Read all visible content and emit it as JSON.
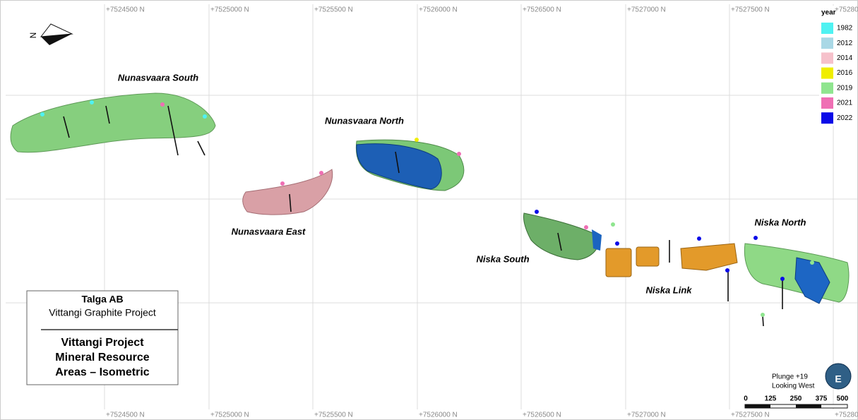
{
  "grid_labels": {
    "top": [
      "+7524500 N",
      "+7525000 N",
      "+7525500 N",
      "+7526000 N",
      "+7526500 N",
      "+7527000 N",
      "+7527500 N",
      "+75280"
    ],
    "bottom": [
      "+7524500 N",
      "+7525000 N",
      "+7525500 N",
      "+7526000 N",
      "+7526500 N",
      "+7527000 N",
      "+7527500 N",
      "+75280"
    ]
  },
  "legend": {
    "title": "year",
    "entries": [
      {
        "label": "1982",
        "color": "#4ff2f2"
      },
      {
        "label": "2012",
        "color": "#a9d8e6"
      },
      {
        "label": "2014",
        "color": "#f6c1cb"
      },
      {
        "label": "2016",
        "color": "#f0ee00"
      },
      {
        "label": "2019",
        "color": "#8fe58f"
      },
      {
        "label": "2021",
        "color": "#ef6fb4"
      },
      {
        "label": "2022",
        "color": "#0a0ae8"
      }
    ]
  },
  "areas": [
    "Nunasvaara South",
    "Nunasvaara North",
    "Nunasvaara East",
    "Niska South",
    "Niska Link",
    "Niska North"
  ],
  "title_box": {
    "company": "Talga AB",
    "project": "Vittangi Graphite Project",
    "heading": [
      "Vittangi Project",
      "Mineral Resource",
      "Areas – Isometric"
    ]
  },
  "view": {
    "plunge": "Plunge +19",
    "looking": "Looking West",
    "compass": "E"
  },
  "north": "N",
  "scale_bar": [
    "0",
    "125",
    "250",
    "375",
    "500"
  ]
}
